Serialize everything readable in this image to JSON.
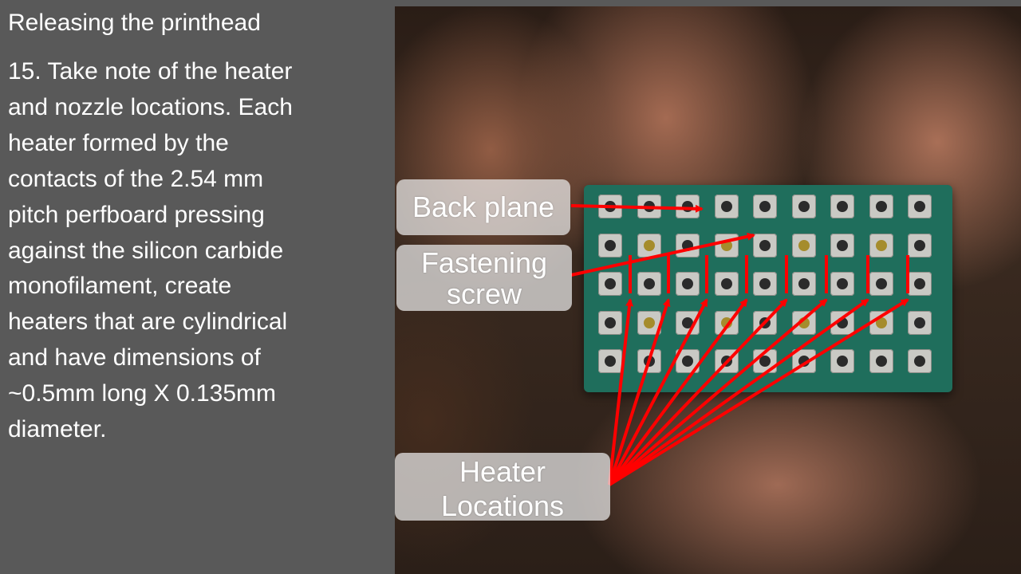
{
  "slide": {
    "title": "Releasing the printhead",
    "body_lines": [
      "15. Take note of the heater",
      "and nozzle locations. Each",
      "heater formed by the",
      "contacts of the 2.54 mm",
      "pitch perfboard pressing",
      "against the silicon carbide",
      "monofilament, create",
      "heaters that are cylindrical",
      "and have dimensions of",
      "~0.5mm long X 0.135mm",
      "diameter."
    ]
  },
  "callouts": {
    "back_plane": "Back plane",
    "fastening_line1": "Fastening",
    "fastening_line2": "screw",
    "heater_line1": "Heater",
    "heater_line2": "Locations"
  },
  "colors": {
    "background": "#595959",
    "arrow": "#ff0000",
    "board": "#1f6e5c"
  }
}
